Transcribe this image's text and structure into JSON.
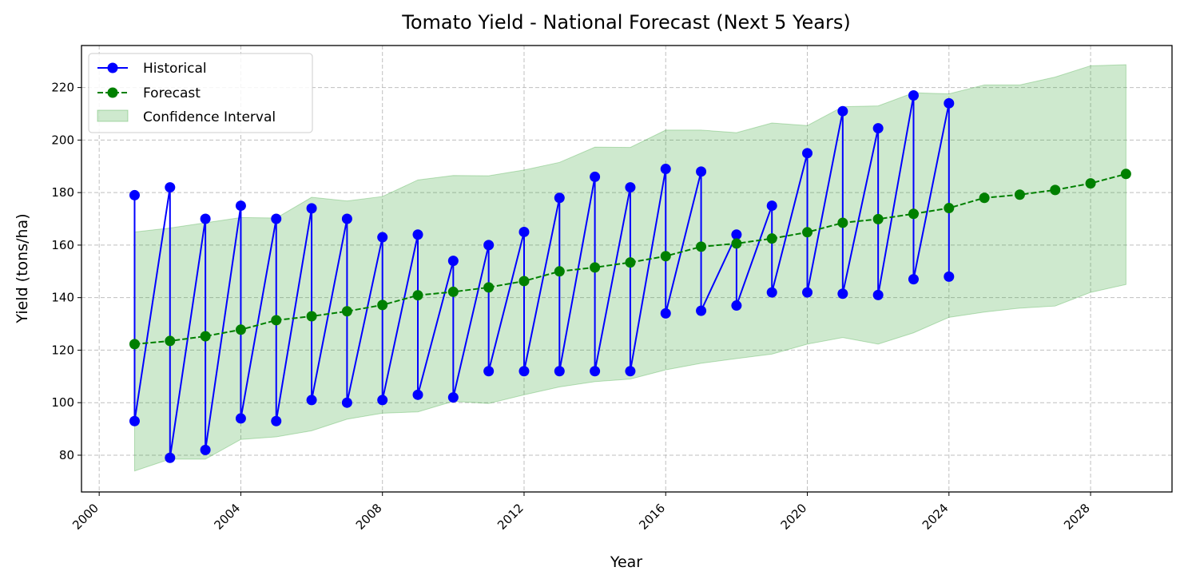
{
  "chart_data": {
    "type": "line",
    "title": "Tomato Yield - National Forecast (Next 5 Years)",
    "xlabel": "Year",
    "ylabel": "Yield (tons/ha)",
    "xlim": [
      1999.5,
      2030.3
    ],
    "ylim": [
      66,
      236
    ],
    "x_ticks": [
      2000,
      2004,
      2008,
      2012,
      2016,
      2020,
      2024,
      2028
    ],
    "y_ticks": [
      80,
      100,
      120,
      140,
      160,
      180,
      200,
      220
    ],
    "grid": true,
    "legend_position": "upper-left",
    "colors": {
      "historical": "#0000ff",
      "forecast": "#008000",
      "confidence": "#2ca02c"
    },
    "legend": [
      "Historical",
      "Forecast",
      "Confidence Interval"
    ],
    "series": [
      {
        "name": "Historical",
        "style": "solid-line-with-markers",
        "points": [
          [
            2001,
            179
          ],
          [
            2001,
            93
          ],
          [
            2002,
            182
          ],
          [
            2002,
            79
          ],
          [
            2003,
            170
          ],
          [
            2003,
            82
          ],
          [
            2004,
            175
          ],
          [
            2004,
            94
          ],
          [
            2005,
            170
          ],
          [
            2005,
            93
          ],
          [
            2006,
            174
          ],
          [
            2006,
            101
          ],
          [
            2007,
            170
          ],
          [
            2007,
            100
          ],
          [
            2008,
            163
          ],
          [
            2008,
            101
          ],
          [
            2009,
            164
          ],
          [
            2009,
            103
          ],
          [
            2010,
            154
          ],
          [
            2010,
            102
          ],
          [
            2011,
            160
          ],
          [
            2011,
            112
          ],
          [
            2012,
            165
          ],
          [
            2012,
            112
          ],
          [
            2013,
            178
          ],
          [
            2013,
            112
          ],
          [
            2014,
            186
          ],
          [
            2014,
            112
          ],
          [
            2015,
            182
          ],
          [
            2015,
            112
          ],
          [
            2016,
            189
          ],
          [
            2016,
            134
          ],
          [
            2017,
            188
          ],
          [
            2017,
            135
          ],
          [
            2018,
            164
          ],
          [
            2018,
            137
          ],
          [
            2019,
            175
          ],
          [
            2019,
            142
          ],
          [
            2020,
            195
          ],
          [
            2020,
            142
          ],
          [
            2021,
            211
          ],
          [
            2021,
            141.5
          ],
          [
            2022,
            204.5
          ],
          [
            2022,
            141
          ],
          [
            2023,
            217
          ],
          [
            2023,
            147
          ],
          [
            2024,
            214
          ],
          [
            2024,
            148
          ]
        ]
      },
      {
        "name": "Forecast",
        "style": "dashed-line-with-markers",
        "points": [
          [
            2001,
            122.3
          ],
          [
            2002,
            123.5
          ],
          [
            2003,
            125.3
          ],
          [
            2004,
            127.8
          ],
          [
            2005,
            131.4
          ],
          [
            2006,
            132.9
          ],
          [
            2007,
            134.8
          ],
          [
            2008,
            137.2
          ],
          [
            2009,
            140.9
          ],
          [
            2010,
            142.2
          ],
          [
            2011,
            143.9
          ],
          [
            2012,
            146.3
          ],
          [
            2013,
            150
          ],
          [
            2014,
            151.5
          ],
          [
            2015,
            153.4
          ],
          [
            2016,
            155.8
          ],
          [
            2017,
            159.4
          ],
          [
            2018,
            160.6
          ],
          [
            2019,
            162.5
          ],
          [
            2020,
            164.9
          ],
          [
            2021,
            168.5
          ],
          [
            2022,
            169.9
          ],
          [
            2023,
            171.9
          ],
          [
            2024,
            174.1
          ],
          [
            2025,
            178
          ],
          [
            2026,
            179.2
          ],
          [
            2027,
            181
          ],
          [
            2028,
            183.5
          ],
          [
            2029,
            187.1
          ]
        ]
      },
      {
        "name": "Confidence Interval",
        "style": "filled-band",
        "x": [
          2001,
          2002,
          2003,
          2004,
          2005,
          2006,
          2007,
          2008,
          2009,
          2010,
          2011,
          2012,
          2013,
          2014,
          2015,
          2016,
          2017,
          2018,
          2019,
          2020,
          2021,
          2022,
          2023,
          2024,
          2025,
          2026,
          2027,
          2028,
          2029
        ],
        "upper": [
          165,
          166.5,
          168.5,
          170.5,
          170.3,
          178.2,
          176.8,
          178.5,
          184.8,
          186.5,
          186.4,
          188.6,
          191.5,
          197.3,
          197.2,
          203.8,
          203.8,
          202.8,
          206.5,
          205.5,
          212.7,
          213,
          218,
          217.6,
          221,
          221,
          224,
          228.3,
          228.7
        ],
        "lower": [
          74,
          78.5,
          78.5,
          86,
          87,
          89.3,
          93.7,
          96,
          96.5,
          100.5,
          99.7,
          103,
          106,
          108,
          109,
          112.5,
          115,
          116.8,
          118.5,
          122.3,
          124.8,
          122.3,
          126.6,
          132.5,
          134.5,
          136,
          136.8,
          142,
          145
        ]
      }
    ]
  }
}
